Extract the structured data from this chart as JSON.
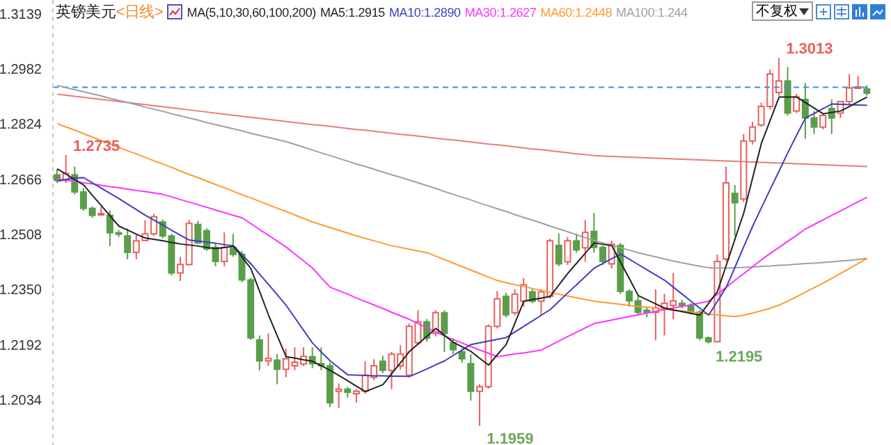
{
  "chart_data": {
    "type": "candlestick",
    "title": "英镑美元",
    "subtitle": "<日线>",
    "annotations": [
      "MA(5,10,30,60,100,200)",
      "不复权",
      "1.2735",
      "1.3013",
      "1.1959",
      "1.2195"
    ],
    "categories": [
      null,
      null,
      null,
      null,
      null,
      null,
      null,
      null,
      null,
      null,
      null,
      null,
      null,
      null,
      null,
      null,
      null,
      null,
      null,
      null,
      null,
      null,
      null,
      null,
      null,
      null,
      null,
      null,
      null,
      null,
      null,
      null,
      null,
      null,
      null,
      null,
      null,
      null,
      null,
      null,
      null,
      null,
      null,
      null,
      null,
      null,
      null,
      null,
      null,
      null,
      null,
      null,
      null,
      null,
      null,
      null,
      null,
      null,
      null,
      null,
      null,
      null,
      null,
      null,
      null,
      null,
      null,
      null,
      null,
      null,
      null,
      null,
      null,
      null,
      null,
      null,
      null,
      null,
      null,
      null,
      null,
      null,
      null,
      null,
      null,
      null,
      null,
      null,
      null,
      null,
      null,
      null,
      null
    ],
    "ohlc": [
      [
        1.2678,
        1.2695,
        1.2655,
        1.2662
      ],
      [
        1.2662,
        1.2735,
        1.2655,
        1.2682
      ],
      [
        1.2678,
        1.2702,
        1.2622,
        1.2629
      ],
      [
        1.2629,
        1.264,
        1.2575,
        1.2582
      ],
      [
        1.2582,
        1.2588,
        1.2555,
        1.2562
      ],
      [
        1.2565,
        1.2586,
        1.2562,
        1.2567
      ],
      [
        1.2562,
        1.2576,
        1.2474,
        1.2512
      ],
      [
        1.2512,
        1.252,
        1.25,
        1.2509
      ],
      [
        1.2503,
        1.2524,
        1.2436,
        1.2456
      ],
      [
        1.2456,
        1.2509,
        1.2436,
        1.2489
      ],
      [
        1.249,
        1.2548,
        1.2488,
        1.2509
      ],
      [
        1.2509,
        1.2566,
        1.2503,
        1.2558
      ],
      [
        1.2543,
        1.255,
        1.2496,
        1.2503
      ],
      [
        1.2503,
        1.2509,
        1.239,
        1.2397
      ],
      [
        1.2397,
        1.2443,
        1.2374,
        1.2421
      ],
      [
        1.2421,
        1.2549,
        1.2418,
        1.2539
      ],
      [
        1.2536,
        1.2546,
        1.248,
        1.2483
      ],
      [
        1.2518,
        1.2525,
        1.246,
        1.2466
      ],
      [
        1.247,
        1.2483,
        1.2416,
        1.243
      ],
      [
        1.243,
        1.2513,
        1.2416,
        1.247
      ],
      [
        1.247,
        1.2509,
        1.2443,
        1.245
      ],
      [
        1.245,
        1.246,
        1.237,
        1.2377
      ],
      [
        1.2377,
        1.2383,
        1.2205,
        1.2211
      ],
      [
        1.2205,
        1.2218,
        1.2118,
        1.2145
      ],
      [
        1.2145,
        1.2224,
        1.2131,
        1.2152
      ],
      [
        1.2147,
        1.2164,
        1.2078,
        1.2121
      ],
      [
        1.2121,
        1.218,
        1.2098,
        1.2151
      ],
      [
        1.2131,
        1.2184,
        1.2118,
        1.2141
      ],
      [
        1.2136,
        1.2184,
        1.213,
        1.2158
      ],
      [
        1.2157,
        1.2184,
        1.2124,
        1.2137
      ],
      [
        1.2137,
        1.2184,
        1.2118,
        1.2131
      ],
      [
        1.2131,
        1.214,
        1.2013,
        1.2025
      ],
      [
        1.2058,
        1.208,
        1.201,
        1.2064
      ],
      [
        1.2064,
        1.2071,
        1.204,
        1.2055
      ],
      [
        1.2051,
        1.2064,
        1.2025,
        1.2058
      ],
      [
        1.2058,
        1.2144,
        1.2051,
        1.2104
      ],
      [
        1.2098,
        1.215,
        1.209,
        1.2131
      ],
      [
        1.2144,
        1.216,
        1.211,
        1.2118
      ],
      [
        1.2118,
        1.2171,
        1.2064,
        1.2164
      ],
      [
        1.2131,
        1.219,
        1.212,
        1.2164
      ],
      [
        1.2104,
        1.2252,
        1.2098,
        1.2244
      ],
      [
        1.2197,
        1.229,
        1.219,
        1.2257
      ],
      [
        1.2257,
        1.2265,
        1.22,
        1.221
      ],
      [
        1.2224,
        1.229,
        1.2215,
        1.2283
      ],
      [
        1.2283,
        1.229,
        1.2171,
        1.2224
      ],
      [
        1.2197,
        1.221,
        1.2165,
        1.2177
      ],
      [
        1.2171,
        1.218,
        1.214,
        1.2151
      ],
      [
        1.2137,
        1.2164,
        1.2031,
        1.2058
      ],
      [
        1.2058,
        1.2078,
        1.1959,
        1.2071
      ],
      [
        1.2071,
        1.225,
        1.2065,
        1.2244
      ],
      [
        1.2244,
        1.2345,
        1.2238,
        1.2323
      ],
      [
        1.233,
        1.234,
        1.227,
        1.2277
      ],
      [
        1.2283,
        1.235,
        1.2275,
        1.2336
      ],
      [
        1.2316,
        1.2383,
        1.23,
        1.2363
      ],
      [
        1.2343,
        1.235,
        1.231,
        1.2316
      ],
      [
        1.2316,
        1.235,
        1.2276,
        1.2343
      ],
      [
        1.233,
        1.2495,
        1.2323,
        1.2489
      ],
      [
        1.2476,
        1.251,
        1.2416,
        1.2423
      ],
      [
        1.2429,
        1.25,
        1.242,
        1.2489
      ],
      [
        1.2489,
        1.251,
        1.2455,
        1.2463
      ],
      [
        1.2469,
        1.2549,
        1.2429,
        1.2513
      ],
      [
        1.2516,
        1.2569,
        1.2455,
        1.247
      ],
      [
        1.247,
        1.2476,
        1.242,
        1.243
      ],
      [
        1.2423,
        1.249,
        1.241,
        1.2479
      ],
      [
        1.2476,
        1.2483,
        1.2337,
        1.2344
      ],
      [
        1.2344,
        1.235,
        1.23,
        1.2317
      ],
      [
        1.2317,
        1.233,
        1.2275,
        1.2284
      ],
      [
        1.229,
        1.23,
        1.227,
        1.2284
      ],
      [
        1.2284,
        1.235,
        1.2204,
        1.2297
      ],
      [
        1.2297,
        1.2337,
        1.2218,
        1.231
      ],
      [
        1.2304,
        1.2397,
        1.2264,
        1.2317
      ],
      [
        1.231,
        1.232,
        1.2295,
        1.2304
      ],
      [
        1.2304,
        1.231,
        1.2278,
        1.2284
      ],
      [
        1.2284,
        1.229,
        1.2204,
        1.2211
      ],
      [
        1.2211,
        1.2215,
        1.2195,
        1.22
      ],
      [
        1.22,
        1.245,
        1.2198,
        1.243
      ],
      [
        1.2437,
        1.2702,
        1.243,
        1.2655
      ],
      [
        1.2625,
        1.2649,
        1.2503,
        1.2598
      ],
      [
        1.2609,
        1.2795,
        1.26,
        1.2775
      ],
      [
        1.2775,
        1.283,
        1.2765,
        1.2815
      ],
      [
        1.2821,
        1.2885,
        1.2815,
        1.2874
      ],
      [
        1.2874,
        1.298,
        1.2865,
        1.2967
      ],
      [
        1.2914,
        1.3013,
        1.2905,
        1.2947
      ],
      [
        1.2947,
        1.2987,
        1.2848,
        1.2855
      ],
      [
        1.2861,
        1.291,
        1.2855,
        1.2901
      ],
      [
        1.2894,
        1.2941,
        1.2782,
        1.2841
      ],
      [
        1.2841,
        1.2861,
        1.2795,
        1.2815
      ],
      [
        1.2815,
        1.2855,
        1.2808,
        1.2848
      ],
      [
        1.2868,
        1.2894,
        1.2795,
        1.2841
      ],
      [
        1.2855,
        1.2888,
        1.2841,
        1.2888
      ],
      [
        1.2888,
        1.2967,
        1.288,
        1.2927
      ],
      [
        1.2927,
        1.2961,
        1.2925,
        1.293
      ],
      [
        1.2924,
        1.2934,
        1.2905,
        1.2912
      ]
    ],
    "series": [
      {
        "type": "line",
        "color": "#e77c7a",
        "values": [
          1.2909,
          1.2906,
          1.2903,
          1.29,
          1.2897,
          1.2894,
          1.2891,
          1.2888,
          1.2885,
          1.2882,
          1.2879,
          1.2876,
          1.2873,
          1.287,
          1.2867,
          1.2864,
          1.2861,
          1.2858,
          1.2855,
          1.2852,
          1.2849,
          1.2846,
          1.2843,
          1.284,
          1.2837,
          1.2834,
          1.2831,
          1.2828,
          1.2825,
          1.2822,
          1.282,
          1.2817,
          1.2814,
          1.2811,
          1.2808,
          1.2806,
          1.2803,
          1.28,
          1.2797,
          1.2794,
          1.2792,
          1.2789,
          1.2786,
          1.2783,
          1.278,
          1.2778,
          1.2775,
          1.2772,
          1.2769,
          1.2766,
          1.2764,
          1.2761,
          1.2758,
          1.2755,
          1.2752,
          1.275,
          1.2747,
          1.2744,
          1.2741,
          1.2738,
          1.2736,
          1.2733,
          1.2732,
          1.2731,
          1.273,
          1.2729,
          1.2728,
          1.2727,
          1.2726,
          1.2725,
          1.2724,
          1.2723,
          1.2722,
          1.2721,
          1.272,
          1.2719,
          1.2718,
          1.2717,
          1.2716,
          1.2715,
          1.2714,
          1.2713,
          1.2712,
          1.2711,
          1.271,
          1.2709,
          1.2708,
          1.2707,
          1.2706,
          1.2705,
          1.2704,
          1.2703,
          1.2702
        ]
      },
      {
        "type": "line",
        "name": "MA100:1.244",
        "color": "#a0a0a0",
        "values": [
          1.2934,
          1.2928,
          1.2922,
          1.2916,
          1.291,
          1.2904,
          1.2897,
          1.2891,
          1.2885,
          1.2879,
          1.2872,
          1.2866,
          1.286,
          1.2853,
          1.2847,
          1.2841,
          1.2835,
          1.2828,
          1.2822,
          1.2816,
          1.281,
          1.2804,
          1.2797,
          1.2791,
          1.2785,
          1.2779,
          1.2773,
          1.2765,
          1.2757,
          1.2749,
          1.2741,
          1.2733,
          1.2725,
          1.2717,
          1.2709,
          1.2702,
          1.2694,
          1.2686,
          1.2678,
          1.2671,
          1.2663,
          1.2655,
          1.2647,
          1.2639,
          1.263,
          1.2622,
          1.2614,
          1.2606,
          1.2597,
          1.2589,
          1.2581,
          1.2573,
          1.2564,
          1.2556,
          1.2548,
          1.254,
          1.2531,
          1.2523,
          1.2515,
          1.2506,
          1.2498,
          1.249,
          1.2483,
          1.2476,
          1.2469,
          1.2462,
          1.2455,
          1.2449,
          1.2443,
          1.2437,
          1.2431,
          1.2426,
          1.2421,
          1.2416,
          1.2412,
          1.2411,
          1.2411,
          1.2412,
          1.2413,
          1.2414,
          1.2416,
          1.2417,
          1.2419,
          1.242,
          1.2422,
          1.2424,
          1.2425,
          1.2427,
          1.2429,
          1.2431,
          1.2433,
          1.2436,
          1.2439
        ]
      },
      {
        "type": "line",
        "name": "MA60:1.2448",
        "color": "#ff9933",
        "values": [
          1.2825,
          1.2815,
          1.2806,
          1.2796,
          1.2786,
          1.2776,
          1.2767,
          1.2757,
          1.2747,
          1.2738,
          1.2728,
          1.2718,
          1.2709,
          1.2699,
          1.2689,
          1.2679,
          1.267,
          1.266,
          1.265,
          1.2641,
          1.2631,
          1.2621,
          1.2612,
          1.2602,
          1.2592,
          1.2582,
          1.2573,
          1.2563,
          1.2553,
          1.2543,
          1.2535,
          1.2527,
          1.2519,
          1.2511,
          1.2503,
          1.2496,
          1.2489,
          1.2482,
          1.2475,
          1.247,
          1.2465,
          1.246,
          1.2455,
          1.2445,
          1.2435,
          1.2425,
          1.2415,
          1.2405,
          1.2395,
          1.2385,
          1.2375,
          1.2369,
          1.2363,
          1.2358,
          1.2352,
          1.2347,
          1.2341,
          1.2336,
          1.2331,
          1.2326,
          1.2321,
          1.2316,
          1.2313,
          1.231,
          1.2307,
          1.2304,
          1.2301,
          1.2299,
          1.2296,
          1.2293,
          1.229,
          1.2288,
          1.2285,
          1.2282,
          1.2279,
          1.2277,
          1.2274,
          1.2272,
          1.2276,
          1.2282,
          1.2289,
          1.2296,
          1.2305,
          1.2316,
          1.2329,
          1.2342,
          1.2355,
          1.2368,
          1.2382,
          1.2396,
          1.241,
          1.2424,
          1.2439
        ]
      },
      {
        "type": "line",
        "name": "MA30:1.2627",
        "color": "#ff33ff",
        "values": [
          1.2666,
          1.2663,
          1.2659,
          1.2655,
          1.2652,
          1.2648,
          1.2644,
          1.2641,
          1.2637,
          1.2633,
          1.263,
          1.2626,
          1.2622,
          1.2615,
          1.2607,
          1.26,
          1.2592,
          1.2585,
          1.2577,
          1.257,
          1.2562,
          1.2555,
          1.2538,
          1.2521,
          1.2505,
          1.2488,
          1.2471,
          1.2451,
          1.2431,
          1.2411,
          1.2383,
          1.2356,
          1.2346,
          1.2336,
          1.2325,
          1.2315,
          1.2305,
          1.2295,
          1.2284,
          1.2274,
          1.2264,
          1.2252,
          1.224,
          1.2228,
          1.2216,
          1.2206,
          1.2196,
          1.2186,
          1.2176,
          1.2167,
          1.2157,
          1.2161,
          1.2165,
          1.2168,
          1.2172,
          1.2176,
          1.2189,
          1.2202,
          1.2215,
          1.2227,
          1.224,
          1.2252,
          1.2257,
          1.2262,
          1.2267,
          1.2272,
          1.2277,
          1.2282,
          1.2287,
          1.2292,
          1.2297,
          1.2301,
          1.2306,
          1.2311,
          1.2316,
          1.2336,
          1.2356,
          1.2376,
          1.2395,
          1.2415,
          1.2435,
          1.2453,
          1.247,
          1.2488,
          1.2505,
          1.2523,
          1.2536,
          1.2549,
          1.2562,
          1.2575,
          1.2588,
          1.2601,
          1.2614
        ]
      },
      {
        "type": "line",
        "name": "MA10:1.2890",
        "color": "#3f3fbf",
        "values": [
          1.266,
          1.2665,
          1.2669,
          1.267,
          1.2655,
          1.264,
          1.2625,
          1.261,
          1.2594,
          1.2578,
          1.2562,
          1.2548,
          1.2534,
          1.2519,
          1.2505,
          1.2491,
          1.2488,
          1.2485,
          1.2482,
          1.2478,
          1.2475,
          1.2449,
          1.2423,
          1.2393,
          1.2364,
          1.2334,
          1.2304,
          1.2268,
          1.2232,
          1.2196,
          1.217,
          1.2145,
          1.2125,
          1.2105,
          1.2104,
          1.2103,
          1.2102,
          1.2102,
          1.2101,
          1.2101,
          1.21,
          1.2111,
          1.2122,
          1.2134,
          1.2145,
          1.2161,
          1.2176,
          1.2192,
          1.2197,
          1.2202,
          1.2207,
          1.2212,
          1.2228,
          1.2244,
          1.226,
          1.2276,
          1.2292,
          1.2316,
          1.234,
          1.2363,
          1.2387,
          1.2411,
          1.2424,
          1.2438,
          1.2451,
          1.2436,
          1.2421,
          1.2406,
          1.2391,
          1.2376,
          1.2356,
          1.2336,
          1.2316,
          1.2296,
          1.2276,
          1.2316,
          1.2356,
          1.2414,
          1.2473,
          1.2531,
          1.2584,
          1.2637,
          1.2689,
          1.2742,
          1.2792,
          1.2841,
          1.2854,
          1.2868,
          1.2881,
          1.288,
          1.2879,
          1.2878,
          1.2877
        ]
      },
      {
        "type": "line",
        "name": "MA5:1.2915",
        "color": "#222222",
        "values": [
          1.2695,
          1.268,
          1.2664,
          1.2649,
          1.2619,
          1.259,
          1.256,
          1.2531,
          1.252,
          1.2508,
          1.2497,
          1.2493,
          1.2489,
          1.2484,
          1.248,
          1.2477,
          1.2474,
          1.247,
          1.2467,
          1.247,
          1.2474,
          1.2442,
          1.2409,
          1.2343,
          1.2276,
          1.2216,
          1.2157,
          1.2153,
          1.2148,
          1.2144,
          1.2131,
          1.2118,
          1.2103,
          1.2088,
          1.2072,
          1.2057,
          1.2067,
          1.2077,
          1.2109,
          1.214,
          1.2172,
          1.2194,
          1.2216,
          1.2238,
          1.2218,
          1.2198,
          1.2185,
          1.2172,
          1.2152,
          1.2133,
          1.2163,
          1.2192,
          1.2254,
          1.2316,
          1.2321,
          1.2325,
          1.233,
          1.2363,
          1.2396,
          1.2425,
          1.2454,
          1.2483,
          1.2479,
          1.2475,
          1.2427,
          1.238,
          1.2332,
          1.232,
          1.2308,
          1.2296,
          1.2291,
          1.2286,
          1.2281,
          1.2276,
          1.231,
          1.2344,
          1.2419,
          1.2495,
          1.257,
          1.267,
          1.2769,
          1.2835,
          1.2901,
          1.2901,
          1.2901,
          1.2885,
          1.2869,
          1.2853,
          1.2857,
          1.2861,
          1.2874,
          1.2888,
          1.2901
        ]
      }
    ],
    "ylim": [
      1.1904,
      1.3179
    ],
    "yticks": [
      1.3139,
      1.2982,
      1.2824,
      1.2666,
      1.2508,
      {
        "value": 1.235,
        "label": "1.2350"
      },
      1.2192,
      1.2034
    ],
    "ref_lines": [
      {
        "axis": "y",
        "value": 1.2929,
        "color": "#3d8bf0",
        "line_style": "dashed"
      }
    ],
    "tick_labels": "y",
    "legend": "top"
  }
}
